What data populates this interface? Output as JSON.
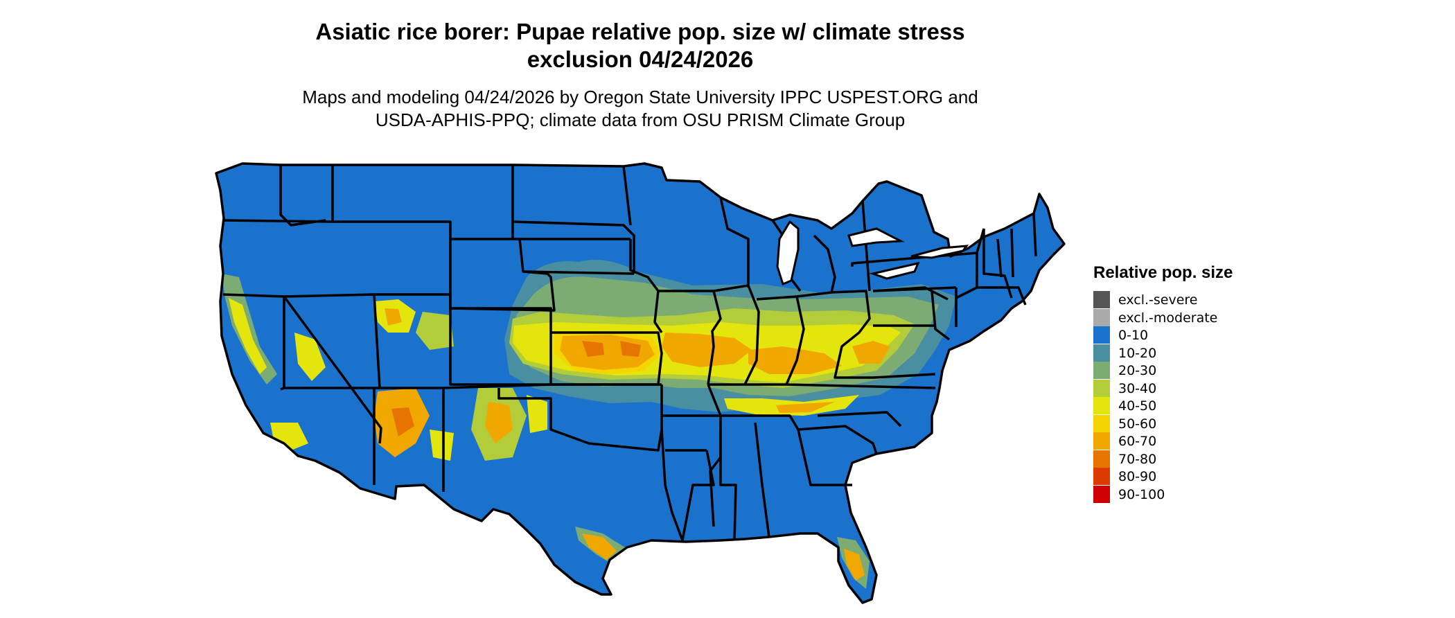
{
  "title": {
    "line1": "Asiatic rice borer: Pupae relative pop. size w/ climate stress",
    "line2": "exclusion 04/24/2026"
  },
  "subtitle": {
    "line1": "Maps and modeling 04/24/2026 by Oregon State University IPPC USPEST.ORG and",
    "line2": "USDA-APHIS-PPQ; climate data from OSU PRISM Climate Group"
  },
  "legend": {
    "title": "Relative pop. size",
    "items": [
      {
        "label": "excl.-severe",
        "color": "#555555"
      },
      {
        "label": "excl.-moderate",
        "color": "#aaaaaa"
      },
      {
        "label": "0-10",
        "color": "#1b72cc"
      },
      {
        "label": "10-20",
        "color": "#4a8fa1"
      },
      {
        "label": "20-30",
        "color": "#7dab74"
      },
      {
        "label": "30-40",
        "color": "#b3cc3a"
      },
      {
        "label": "40-50",
        "color": "#e5e50e"
      },
      {
        "label": "50-60",
        "color": "#f5d400"
      },
      {
        "label": "60-70",
        "color": "#f0a800"
      },
      {
        "label": "70-80",
        "color": "#e87400"
      },
      {
        "label": "80-90",
        "color": "#dc3c00"
      },
      {
        "label": "90-100",
        "color": "#d00000"
      }
    ]
  }
}
